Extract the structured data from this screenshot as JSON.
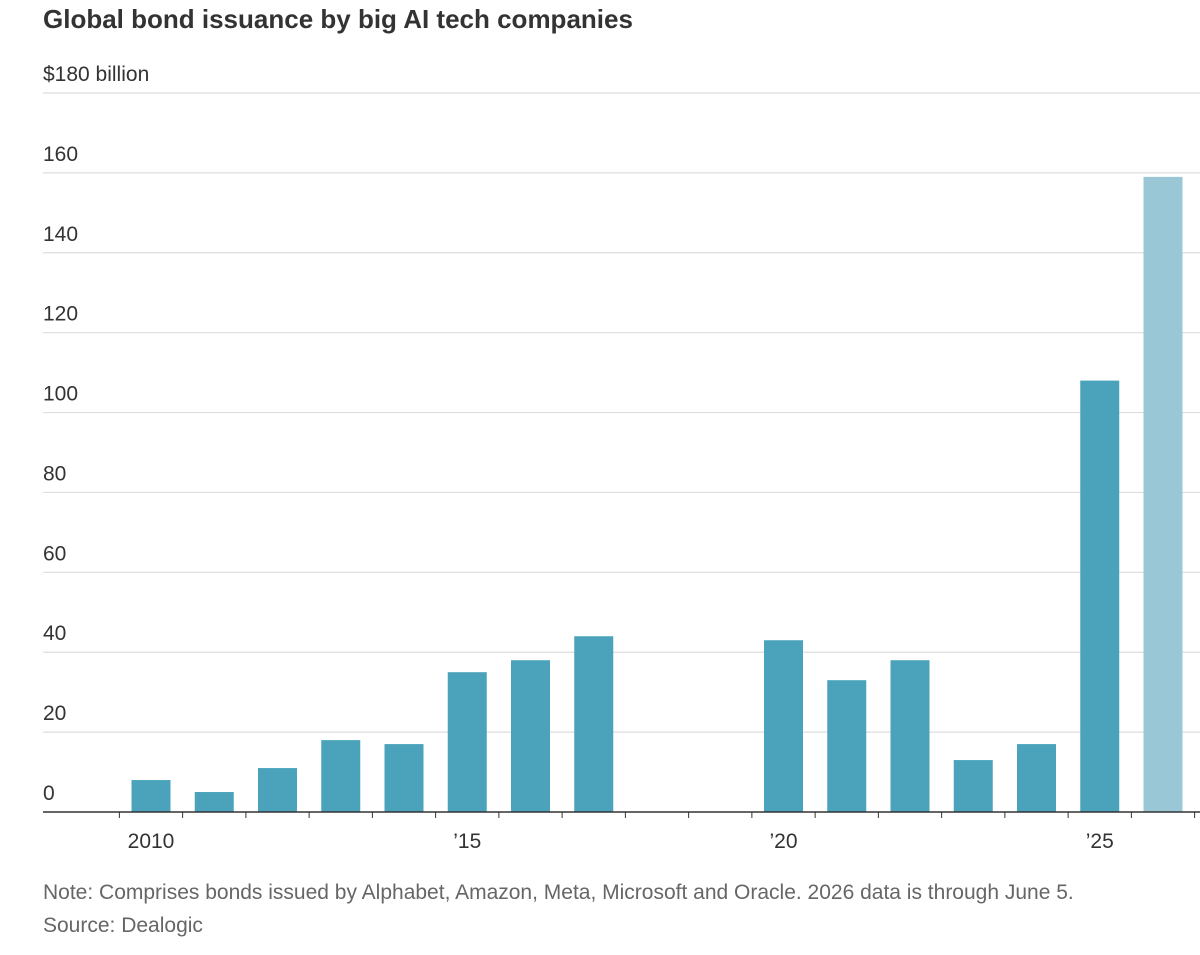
{
  "chart_data": {
    "type": "bar",
    "title": "Global bond issuance by big AI tech companies",
    "ylabel_unit": "$180 billion",
    "x": [
      2010,
      2011,
      2012,
      2013,
      2014,
      2015,
      2016,
      2017,
      2018,
      2019,
      2020,
      2021,
      2022,
      2023,
      2024,
      2025,
      2026
    ],
    "values": [
      8,
      5,
      11,
      18,
      17,
      35,
      38,
      44,
      0,
      0,
      43,
      33,
      38,
      13,
      17,
      108,
      159
    ],
    "partial_year": 2026,
    "ylim": [
      0,
      180
    ],
    "yticks": [
      0,
      20,
      40,
      60,
      80,
      100,
      120,
      140,
      160,
      180
    ],
    "ytick_labels": [
      "0",
      "20",
      "40",
      "60",
      "80",
      "100",
      "120",
      "140",
      "160",
      "$180 billion"
    ],
    "xtick_labels": [
      {
        "year": 2010,
        "label": "2010"
      },
      {
        "year": 2015,
        "label": "’15"
      },
      {
        "year": 2020,
        "label": "’20"
      },
      {
        "year": 2025,
        "label": "’25"
      }
    ],
    "grid": true,
    "colors": {
      "bar": "#4aa3bb",
      "bar_partial": "#99c7d6",
      "grid": "#dddddd",
      "axis": "#333333"
    }
  },
  "footer": {
    "note": "Note: Comprises bonds issued by Alphabet, Amazon, Meta, Microsoft and Oracle. 2026 data is through June 5.",
    "source": "Source: Dealogic"
  }
}
